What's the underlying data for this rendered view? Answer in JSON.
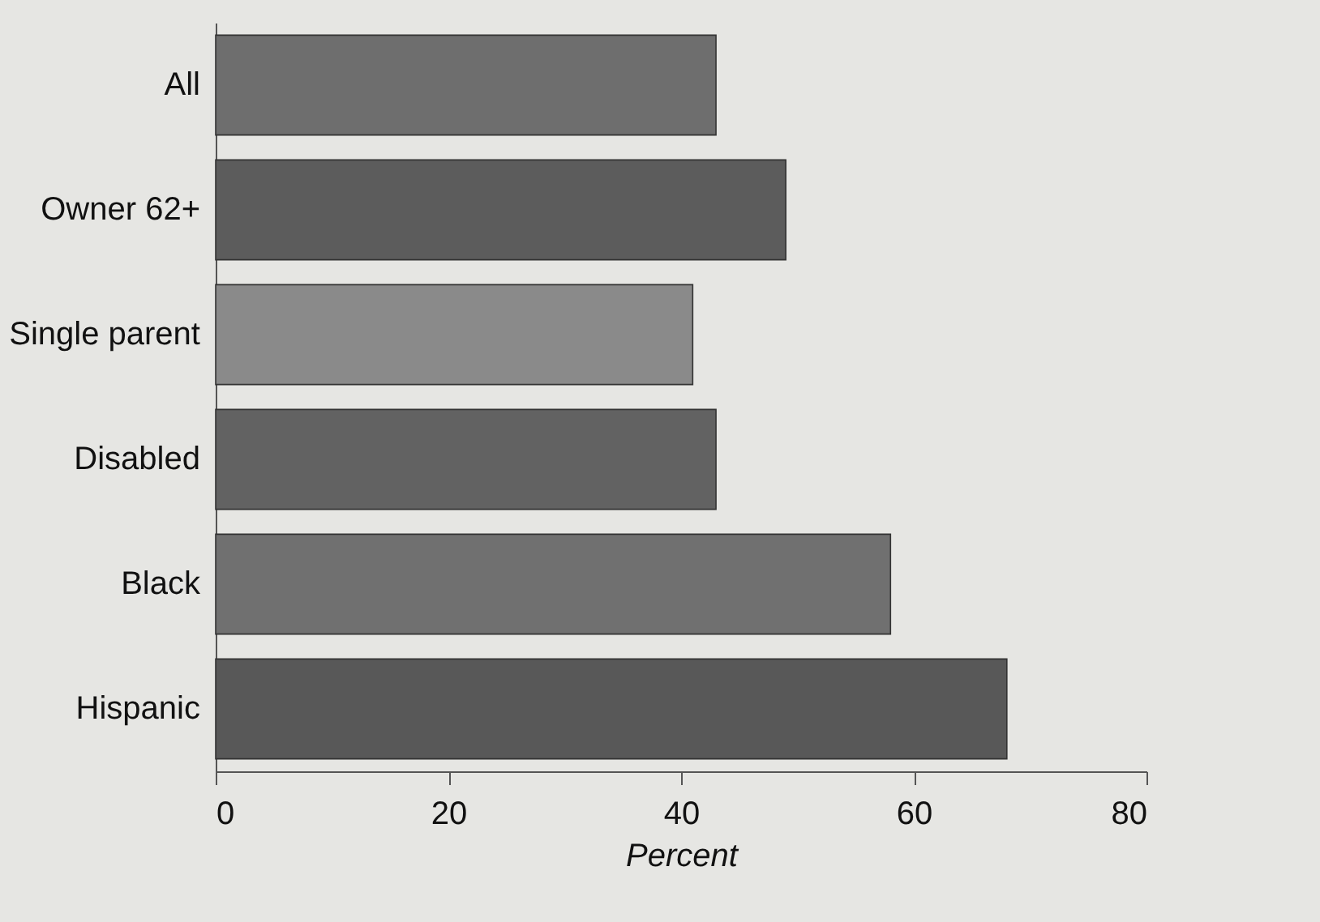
{
  "chart_data": {
    "type": "bar",
    "orientation": "horizontal",
    "xlabel": "Percent",
    "categories": [
      "All",
      "Owner 62+",
      "Single parent",
      "Disabled",
      "Black",
      "Hispanic"
    ],
    "values": [
      43,
      49,
      41,
      43,
      58,
      68
    ],
    "colors": [
      "#6e6e6e",
      "#5c5c5c",
      "#8a8a8a",
      "#626262",
      "#707070",
      "#585858"
    ],
    "xlim": [
      0,
      80
    ],
    "xticks": [
      0,
      20,
      40,
      60,
      80
    ],
    "grid": false
  }
}
